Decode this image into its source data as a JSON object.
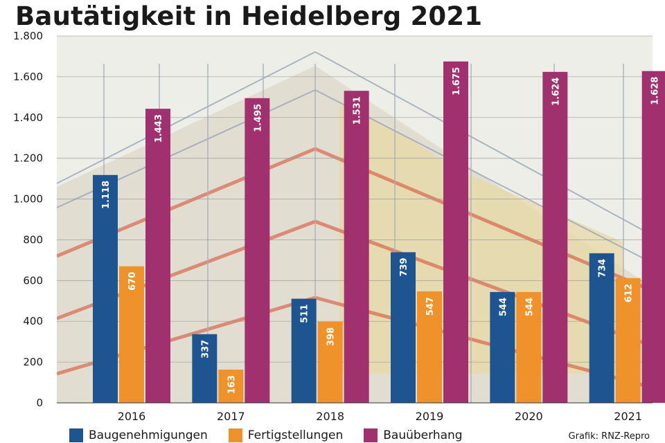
{
  "title": "Bautätigkeit in Heidelberg 2021",
  "credit": "Grafik: RNZ-Repro",
  "colors": {
    "Baugenehmigungen": "#1e5591",
    "Fertigstellungen": "#f0922b",
    "Bauüberhang": "#a0306e",
    "photo_background": "#ecece6"
  },
  "chart_data": {
    "type": "bar",
    "title": "Bautätigkeit in Heidelberg 2021",
    "xlabel": "",
    "ylabel": "",
    "categories": [
      "2016",
      "2017",
      "2018",
      "2019",
      "2020",
      "2021"
    ],
    "series": [
      {
        "name": "Baugenehmigungen",
        "values": [
          1118,
          337,
          511,
          739,
          544,
          734
        ],
        "labels": [
          "1.118",
          "337",
          "511",
          "739",
          "544",
          "734"
        ]
      },
      {
        "name": "Fertigstellungen",
        "values": [
          670,
          163,
          398,
          547,
          544,
          612
        ],
        "labels": [
          "670",
          "163",
          "398",
          "547",
          "544",
          "612"
        ]
      },
      {
        "name": "Bauüberhang",
        "values": [
          1443,
          1495,
          1531,
          1675,
          1624,
          1628
        ],
        "labels": [
          "1.443",
          "1.495",
          "1.531",
          "1.675",
          "1.624",
          "1.628"
        ]
      }
    ],
    "ylim": [
      0,
      1800
    ],
    "yticks": [
      0,
      200,
      400,
      600,
      800,
      1000,
      1200,
      1400,
      1600,
      1800
    ],
    "ytick_labels": [
      "0",
      "200",
      "400",
      "600",
      "800",
      "1.000",
      "1.200",
      "1.400",
      "1.600",
      "1.800"
    ],
    "grid": true,
    "legend_position": "bottom",
    "value_labels": "inside-top, rotated vertical",
    "background": "photo of a building under construction with scaffolding"
  }
}
